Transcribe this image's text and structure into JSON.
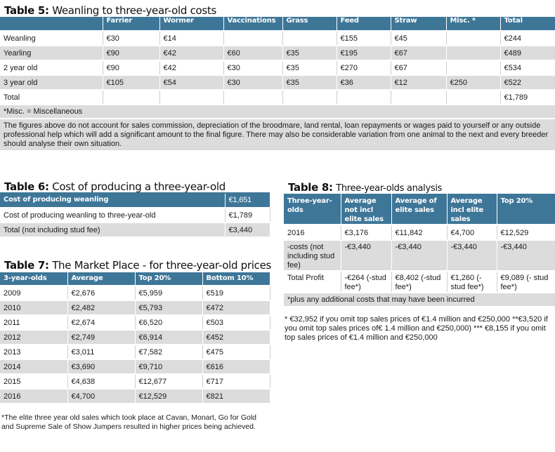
{
  "table5": {
    "title_bold": "Table 5:",
    "title_rest": "Weanling to three-year-old costs",
    "headers": [
      "",
      "Farrier",
      "Wormer",
      "Vaccinations",
      "Grass",
      "Feed",
      "Straw",
      "Misc. *",
      "Total"
    ],
    "rows": [
      [
        "Weanling",
        "€30",
        "€14",
        "",
        "",
        "€155",
        "€45",
        "",
        "€244"
      ],
      [
        "Yearling",
        "€90",
        "€42",
        "€60",
        "€35",
        "€195",
        "€67",
        "",
        "€489"
      ],
      [
        "2 year old",
        "€90",
        "€42",
        "€30",
        "€35",
        "€270",
        "€67",
        "",
        "€534"
      ],
      [
        "3 year old",
        "€105",
        "€54",
        "€30",
        "€35",
        "€36",
        "€12",
        "€250",
        "€522"
      ],
      [
        "Total",
        "",
        "",
        "",
        "",
        "",
        "",
        "",
        "€1,789"
      ]
    ],
    "footnote": "*Misc. = Miscellaneous",
    "paragraph": "The figures above do not account for sales commission, depreciation of the broodmare, land rental, loan repayments or wages paid to yourself or any outside professional help which will add a significant amount to the final figure. There may also be considerable variation from one animal to the next and every breeder should analyse their own situation."
  },
  "table6": {
    "title_bold": "Table 6:",
    "title_rest": "Cost of producing a three-year-old",
    "rows": [
      [
        "Cost of producing weanling",
        "€1,651"
      ],
      [
        "Cost of producing weanling to three-year-old",
        "€1,789"
      ],
      [
        "Total (not including stud fee)",
        "€3,440"
      ]
    ]
  },
  "table7": {
    "title_bold": "Table 7:",
    "title_rest": "The Market Place - for three-year-old prices",
    "headers": [
      "3-year-olds",
      "Average",
      "Top 20%",
      "Bottom 10%"
    ],
    "rows": [
      [
        "2009",
        "€2,676",
        "€5,959",
        "€519"
      ],
      [
        "2010",
        "€2,482",
        "€5,793",
        "€472"
      ],
      [
        "2011",
        "€2,674",
        "€6,520",
        "€503"
      ],
      [
        "2012",
        "€2,749",
        "€6,914",
        "€452"
      ],
      [
        "2013",
        "€3,011",
        "€7,582",
        "€475"
      ],
      [
        "2014",
        "€3,690",
        "€9,710",
        "€616"
      ],
      [
        "2015",
        "€4,638",
        "€12,677",
        "€717"
      ],
      [
        "2016",
        "€4,700",
        "€12,529",
        "€821"
      ]
    ],
    "footnote": "*The elite three year old sales which took place at Cavan, Monart, Go for Gold and Supreme Sale of  Show Jumpers resulted in higher prices being achieved."
  },
  "table8": {
    "title_bold": "Table 8:",
    "title_rest": "Three-year-olds analysis",
    "headers": [
      "Three-year-olds",
      "Average not incl elite sales",
      "Average of elite sales",
      "Average incl elite sales",
      "Top 20%"
    ],
    "rows": [
      [
        "2016",
        "€3,176",
        "€11,842",
        "€4,700",
        "€12,529"
      ],
      [
        "-costs (not including stud fee)",
        "-€3,440",
        "-€3,440",
        "-€3,440",
        "-€3,440"
      ],
      [
        "Total Profit",
        "-€264 (-stud fee*)",
        "€8,402 (-stud fee*)",
        "€1,260 (-stud fee*)",
        "€9,089 (- stud fee*)"
      ]
    ],
    "footnote_row": "*plus any additional costs that may have been incurred",
    "notes": "* €32,952 if you omit top sales prices of €1.4 million and €250,000 **€3,520 if you omit top sales prices of€ 1.4 million and €250,000) *** €8,155 if you omit top sales prices of €1.4 million and €250,000"
  }
}
